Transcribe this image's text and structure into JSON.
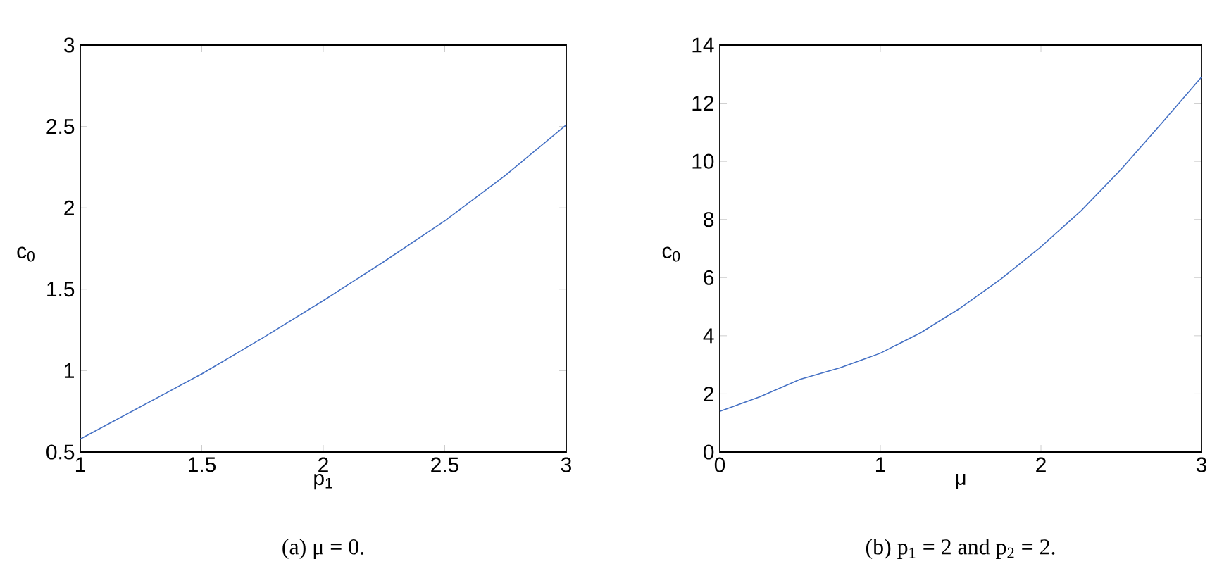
{
  "chart_data": [
    {
      "type": "line",
      "xlabel": "p$_{1}$",
      "ylabel": "c$_{0}$",
      "annotations": [
        "(a) μ = 0."
      ],
      "xlim": [
        1,
        3
      ],
      "ylim": [
        0.5,
        3
      ],
      "xticks": [
        1,
        1.5,
        2,
        2.5,
        3
      ],
      "yticks": [
        0.5,
        1,
        1.5,
        2,
        2.5,
        3
      ],
      "series": [
        {
          "color": "#4470c4",
          "x": [
            1,
            1.25,
            1.5,
            1.75,
            2,
            2.25,
            2.5,
            2.75,
            3
          ],
          "values": [
            0.58,
            0.78,
            0.98,
            1.2,
            1.43,
            1.67,
            1.92,
            2.2,
            2.51
          ]
        }
      ]
    },
    {
      "type": "line",
      "xlabel": "μ",
      "ylabel": "c$_{0}$",
      "annotations": [
        "(b) p$_{1}$ = 2 and p$_{2}$ = 2."
      ],
      "xlim": [
        0,
        3
      ],
      "ylim": [
        0,
        14
      ],
      "xticks": [
        0,
        1,
        2,
        3
      ],
      "yticks": [
        0,
        2,
        4,
        6,
        8,
        10,
        12,
        14
      ],
      "series": [
        {
          "color": "#4470c4",
          "x": [
            0,
            0.25,
            0.5,
            0.75,
            1,
            1.25,
            1.5,
            1.75,
            2,
            2.25,
            2.5,
            2.75,
            3
          ],
          "values": [
            1.4,
            1.9,
            2.5,
            2.9,
            3.4,
            4.1,
            4.96,
            5.95,
            7.06,
            8.3,
            9.73,
            11.3,
            12.9
          ]
        }
      ]
    }
  ]
}
